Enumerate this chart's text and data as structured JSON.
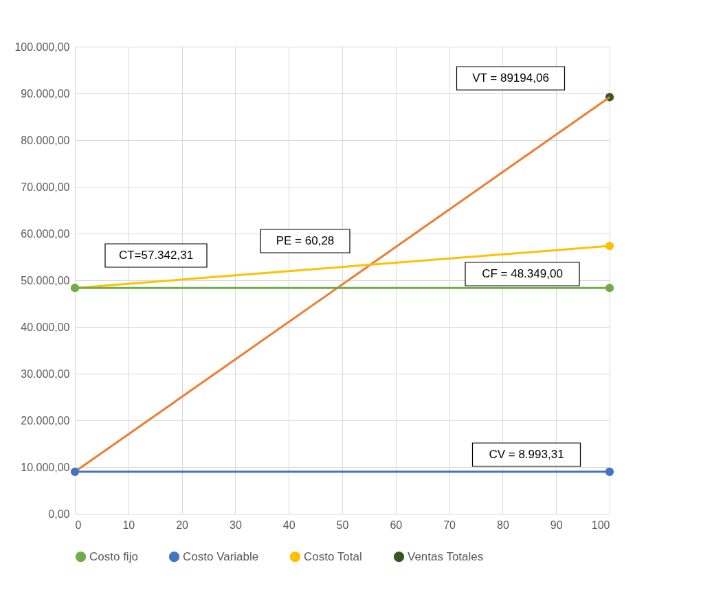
{
  "chart_data": {
    "type": "line",
    "x": [
      0,
      100
    ],
    "xlim": [
      0,
      100
    ],
    "xticks": [
      0,
      10,
      20,
      30,
      40,
      50,
      60,
      70,
      80,
      90,
      100
    ],
    "ylim": [
      0,
      100000
    ],
    "yticks": [
      {
        "value": 0,
        "label": "0,00"
      },
      {
        "value": 10000,
        "label": "10.000,00"
      },
      {
        "value": 20000,
        "label": "20.000,00"
      },
      {
        "value": 30000,
        "label": "30.000,00"
      },
      {
        "value": 40000,
        "label": "40.000,00"
      },
      {
        "value": 50000,
        "label": "50.000,00"
      },
      {
        "value": 60000,
        "label": "60.000,00"
      },
      {
        "value": 70000,
        "label": "70.000,00"
      },
      {
        "value": 80000,
        "label": "80.000,00"
      },
      {
        "value": 90000,
        "label": "90.000,00"
      },
      {
        "value": 100000,
        "label": "100.000,00"
      }
    ],
    "grid": true,
    "legend": "bottom",
    "marker": "circle",
    "series": [
      {
        "name": "Costo fijo",
        "color": "#70ad47",
        "values": [
          48349,
          48349
        ]
      },
      {
        "name": "Costo Variable",
        "color": "#4472c4",
        "values": [
          8993.31,
          8993.31
        ]
      },
      {
        "name": "Costo Total",
        "color": "#ffc000",
        "values": [
          48349,
          57342.31
        ]
      },
      {
        "color": "#ed7d31",
        "marker": "none",
        "values": [
          8993.31,
          89194.06
        ]
      },
      {
        "name": "Ventas Totales",
        "color": "#375623",
        "x": [
          100
        ],
        "values": [
          89194.06
        ]
      }
    ],
    "annotations": [
      "VT = 89194,06",
      "PE = 60,28",
      "CT=57.342,31",
      "CF = 48.349,00",
      "CV = 8.993,31"
    ]
  }
}
